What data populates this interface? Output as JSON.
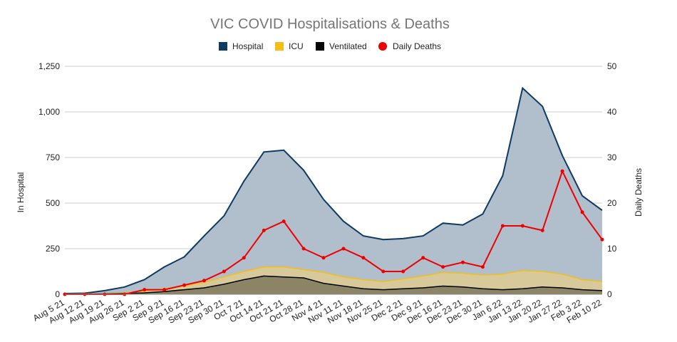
{
  "chart_data": {
    "type": "area",
    "title": "VIC COVID Hospitalisations & Deaths",
    "ylabel_left": "In Hospital",
    "ylabel_right": "Daily Deaths",
    "ylim_left": [
      0,
      1250
    ],
    "ylim_right": [
      0,
      50
    ],
    "yticks_left": [
      "0",
      "250",
      "500",
      "750",
      "1,000",
      "1,250"
    ],
    "yticks_right": [
      "0",
      "10",
      "20",
      "30",
      "40",
      "50"
    ],
    "categories": [
      "Aug 5 21",
      "Aug 12 21",
      "Aug 19 21",
      "Aug 26 21",
      "Sep 2 21",
      "Sep 9 21",
      "Sep 16 21",
      "Sep 23 21",
      "Sep 30 21",
      "Oct 7 21",
      "Oct 14 21",
      "Oct 21 21",
      "Oct 28 21",
      "Nov 4 21",
      "Nov 11 21",
      "Nov 18 21",
      "Nov 25 21",
      "Dec 2 21",
      "Dec 9 21",
      "Dec 16 21",
      "Dec 23 21",
      "Dec 30 21",
      "Jan 6 22",
      "Jan 13 22",
      "Jan 20 22",
      "Jan 27 22",
      "Feb 3 22",
      "Feb 10 22"
    ],
    "legend_position": "top-center",
    "colors": {
      "hospital_line": "#0d3a63",
      "hospital_fill": "#b1bfcd",
      "icu_line": "#f4be16",
      "icu_fill": "#d8c99a",
      "ventilated_line": "#000000",
      "ventilated_fill": "#8b8566",
      "deaths": "#ee0000"
    },
    "series": [
      {
        "name": "Hospital",
        "type": "area",
        "axis": "left",
        "values": [
          4,
          6,
          20,
          40,
          80,
          150,
          205,
          320,
          430,
          620,
          780,
          790,
          680,
          520,
          400,
          320,
          300,
          305,
          320,
          390,
          380,
          440,
          650,
          1130,
          1030,
          760,
          540,
          460
        ]
      },
      {
        "name": "ICU",
        "type": "area",
        "axis": "left",
        "values": [
          1,
          2,
          3,
          8,
          18,
          30,
          45,
          65,
          95,
          125,
          150,
          150,
          135,
          120,
          95,
          80,
          70,
          85,
          100,
          120,
          115,
          105,
          110,
          130,
          125,
          110,
          80,
          70
        ]
      },
      {
        "name": "Ventilated",
        "type": "area",
        "axis": "left",
        "values": [
          1,
          1,
          2,
          4,
          8,
          15,
          25,
          35,
          55,
          80,
          100,
          95,
          90,
          60,
          45,
          30,
          25,
          30,
          35,
          45,
          40,
          30,
          25,
          30,
          40,
          35,
          25,
          20
        ]
      },
      {
        "name": "Daily Deaths",
        "type": "line",
        "axis": "right",
        "values": [
          0,
          0,
          0,
          0,
          1,
          1,
          2,
          3,
          5,
          8,
          14,
          16,
          10,
          8,
          10,
          8,
          5,
          5,
          8,
          6,
          7,
          6,
          15,
          15,
          14,
          27,
          18,
          12
        ]
      }
    ]
  }
}
